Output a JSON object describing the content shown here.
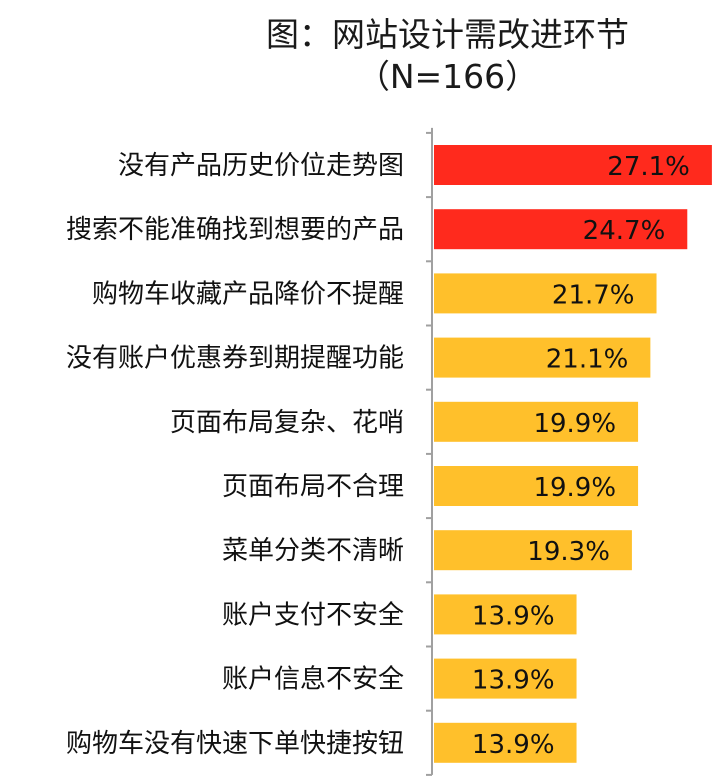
{
  "title": "图：网站设计需改进环节",
  "subtitle": "（N=166）",
  "colors": {
    "highlight": "#FF2A1D",
    "normal": "#FFC02B",
    "axis": "#A0A0A0",
    "text": "#111111"
  },
  "chart_data": {
    "type": "bar",
    "orientation": "horizontal",
    "title": "图：网站设计需改进环节",
    "subtitle": "（N=166）",
    "xlabel": "",
    "ylabel": "",
    "unit": "%",
    "categories": [
      "没有产品历史价位走势图",
      "搜索不能准确找到想要的产品",
      "购物车收藏产品降价不提醒",
      "没有账户优惠券到期提醒功能",
      "页面布局复杂、花哨",
      "页面布局不合理",
      "菜单分类不清晰",
      "账户支付不安全",
      "账户信息不安全",
      "购物车没有快速下单快捷按钮"
    ],
    "values": [
      27.1,
      24.7,
      21.7,
      21.1,
      19.9,
      19.9,
      19.3,
      13.9,
      13.9,
      13.9
    ],
    "value_labels": [
      "27.1%",
      "24.7%",
      "21.7%",
      "21.1%",
      "19.9%",
      "19.9%",
      "19.3%",
      "13.9%",
      "13.9%",
      "13.9%"
    ],
    "highlighted": [
      true,
      true,
      false,
      false,
      false,
      false,
      false,
      false,
      false,
      false
    ],
    "xlim": [
      0,
      27.5
    ],
    "grid": false,
    "legend": "none"
  }
}
